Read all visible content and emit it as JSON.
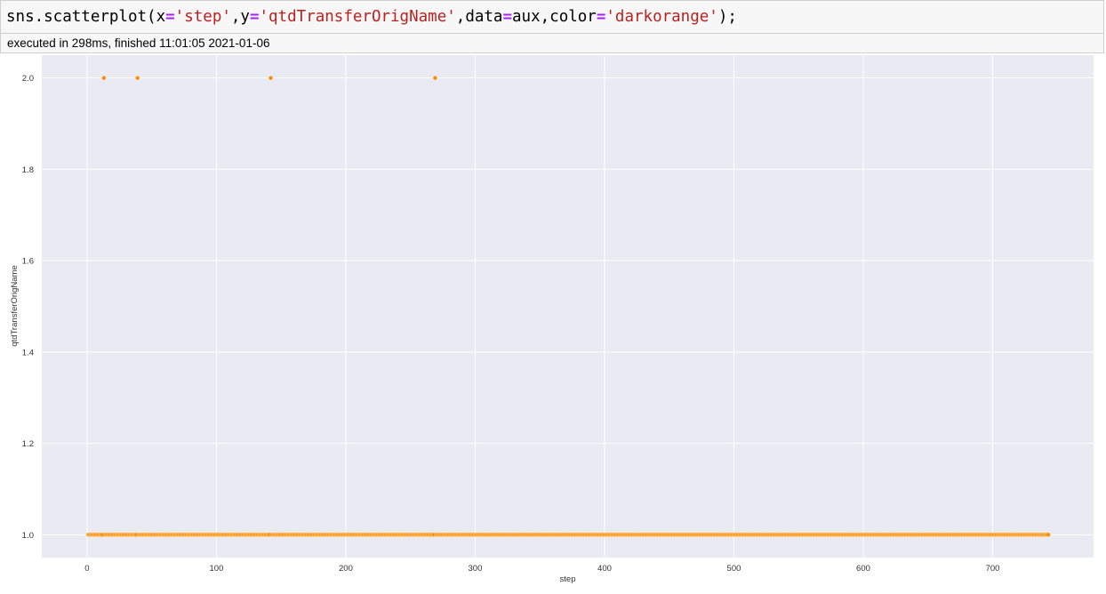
{
  "cell": {
    "code": {
      "prefix": "sns.scatterplot(x",
      "eq1": "=",
      "x_str": "'step'",
      "comma1": ",y",
      "eq2": "=",
      "y_str": "'qtdTransferOrigName'",
      "comma2": ",data",
      "eq3": "=",
      "data_var": "aux",
      "comma3": ",color",
      "eq4": "=",
      "color_str": "'darkorange'",
      "suffix": ");"
    },
    "execution": "executed in 298ms, finished 11:01:05 2021-01-06"
  },
  "colors": {
    "plot_background": "#eaeaf2",
    "grid": "#ffffff",
    "marker": "#ff8c00"
  },
  "chart_data": {
    "type": "scatter",
    "xlabel": "step",
    "ylabel": "qtdTransferOrigName",
    "xlim": [
      -35,
      778
    ],
    "ylim": [
      0.95,
      2.05
    ],
    "xticks": [
      0,
      100,
      200,
      300,
      400,
      500,
      600,
      700
    ],
    "yticks": [
      1.0,
      1.2,
      1.4,
      1.6,
      1.8,
      2.0
    ],
    "grid": true,
    "series": [
      {
        "marker_color": "darkorange",
        "y_constant": 1.0,
        "x_range": [
          1,
          743
        ],
        "outliers": [
          {
            "x": 13,
            "y": 2.0
          },
          {
            "x": 39,
            "y": 2.0
          },
          {
            "x": 142,
            "y": 2.0
          },
          {
            "x": 269,
            "y": 2.0
          }
        ]
      }
    ]
  }
}
